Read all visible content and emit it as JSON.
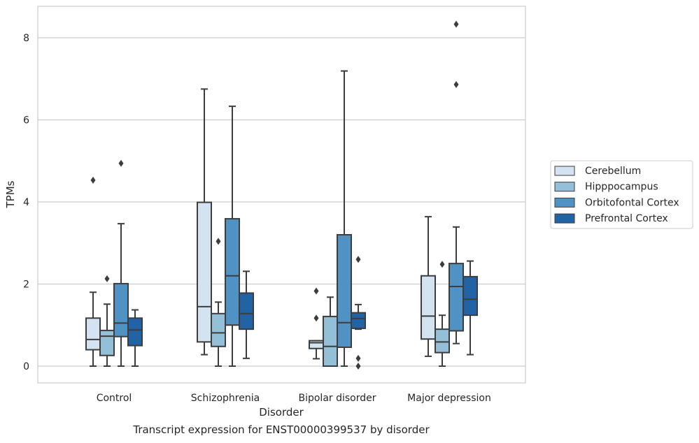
{
  "caption": "Transcript expression for ENST00000399537 by disorder",
  "chart_data": {
    "type": "boxplot",
    "xlabel": "Disorder",
    "ylabel": "TPMs",
    "ylim": [
      -0.4,
      8.75
    ],
    "yticks": [
      0,
      2,
      4,
      6,
      8
    ],
    "grid": "horizontal",
    "legend_position": "right",
    "categories": [
      "Control",
      "Schizophrenia",
      "Bipolar disorder",
      "Major depression"
    ],
    "series": [
      {
        "name": "Cerebellum",
        "color": "#d4e3f1",
        "boxes": [
          {
            "whisker_low": 0.0,
            "q1": 0.4,
            "median": 0.65,
            "q3": 1.17,
            "whisker_high": 1.8,
            "outliers": [
              4.53
            ]
          },
          {
            "whisker_low": 0.28,
            "q1": 0.59,
            "median": 1.45,
            "q3": 3.99,
            "whisker_high": 6.75,
            "outliers": []
          },
          {
            "whisker_low": 0.18,
            "q1": 0.43,
            "median": 0.57,
            "q3": 0.62,
            "whisker_high": 0.62,
            "outliers": [
              1.17,
              1.83
            ]
          },
          {
            "whisker_low": 0.24,
            "q1": 0.66,
            "median": 1.22,
            "q3": 2.2,
            "whisker_high": 3.64,
            "outliers": []
          }
        ]
      },
      {
        "name": "Hipppocampus",
        "color": "#94bfd9",
        "boxes": [
          {
            "whisker_low": 0.0,
            "q1": 0.26,
            "median": 0.73,
            "q3": 0.87,
            "whisker_high": 1.51,
            "outliers": [
              2.13
            ]
          },
          {
            "whisker_low": 0.0,
            "q1": 0.48,
            "median": 0.81,
            "q3": 1.28,
            "whisker_high": 1.56,
            "outliers": [
              3.04
            ]
          },
          {
            "whisker_low": 0.0,
            "q1": 0.0,
            "median": 0.48,
            "q3": 1.21,
            "whisker_high": 1.68,
            "outliers": []
          },
          {
            "whisker_low": 0.0,
            "q1": 0.33,
            "median": 0.59,
            "q3": 0.9,
            "whisker_high": 1.24,
            "outliers": [
              2.48
            ]
          }
        ]
      },
      {
        "name": "Orbitofontal Cortex",
        "color": "#5192c4",
        "boxes": [
          {
            "whisker_low": 0.0,
            "q1": 0.72,
            "median": 1.05,
            "q3": 2.01,
            "whisker_high": 3.47,
            "outliers": [
              4.94
            ]
          },
          {
            "whisker_low": 0.0,
            "q1": 1.0,
            "median": 2.2,
            "q3": 3.59,
            "whisker_high": 6.33,
            "outliers": []
          },
          {
            "whisker_low": 0.0,
            "q1": 0.46,
            "median": 1.06,
            "q3": 3.2,
            "whisker_high": 7.19,
            "outliers": []
          },
          {
            "whisker_low": 0.55,
            "q1": 0.86,
            "median": 1.94,
            "q3": 2.5,
            "whisker_high": 3.39,
            "outliers": [
              6.86,
              8.33
            ]
          }
        ]
      },
      {
        "name": "Prefrontal Cortex",
        "color": "#2263a6",
        "boxes": [
          {
            "whisker_low": 0.0,
            "q1": 0.5,
            "median": 0.88,
            "q3": 1.17,
            "whisker_high": 1.37,
            "outliers": []
          },
          {
            "whisker_low": 0.19,
            "q1": 0.9,
            "median": 1.28,
            "q3": 1.78,
            "whisker_high": 2.31,
            "outliers": []
          },
          {
            "whisker_low": 0.9,
            "q1": 0.92,
            "median": 1.16,
            "q3": 1.3,
            "whisker_high": 1.5,
            "outliers": [
              0.0,
              0.19,
              2.6
            ]
          },
          {
            "whisker_low": 0.28,
            "q1": 1.24,
            "median": 1.63,
            "q3": 2.18,
            "whisker_high": 2.56,
            "outliers": []
          }
        ]
      }
    ]
  }
}
